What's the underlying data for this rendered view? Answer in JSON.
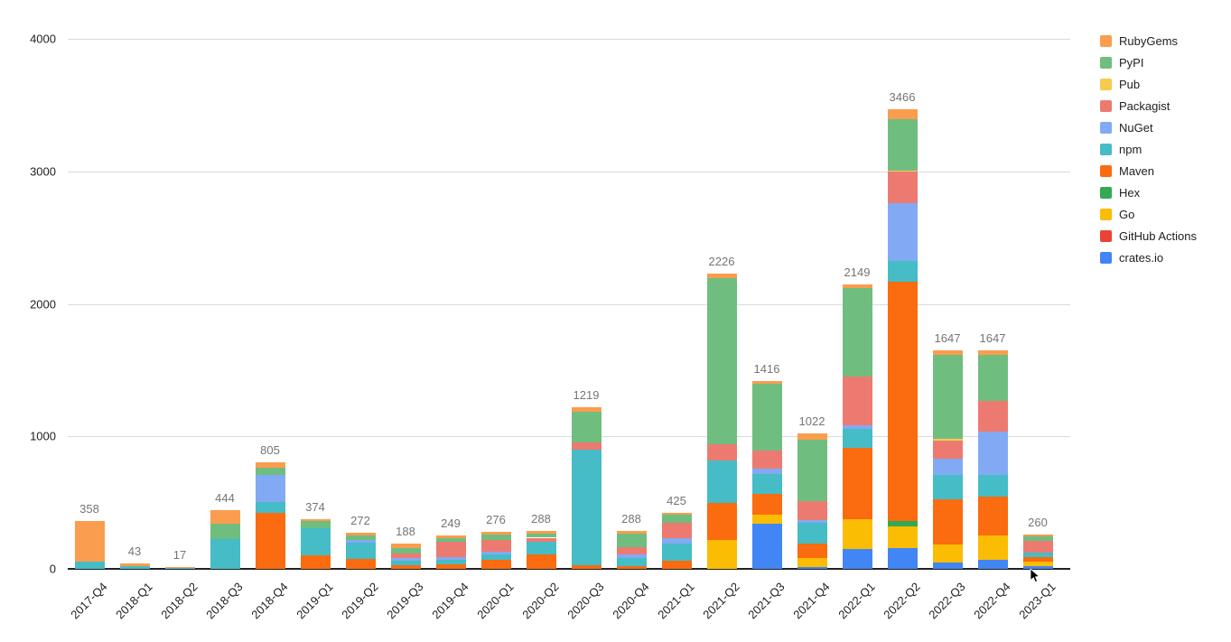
{
  "chart_data": {
    "type": "bar",
    "stacked": true,
    "title": "",
    "xlabel": "",
    "ylabel": "",
    "ylim": [
      0,
      4000
    ],
    "yticks": [
      0,
      1000,
      2000,
      3000,
      4000
    ],
    "grid": true,
    "legend_position": "right",
    "legend_order_top_to_bottom": [
      "RubyGems",
      "PyPI",
      "Pub",
      "Packagist",
      "NuGet",
      "npm",
      "Maven",
      "Hex",
      "Go",
      "GitHub Actions",
      "crates.io"
    ],
    "categories": [
      "2017-Q4",
      "2018-Q1",
      "2018-Q2",
      "2018-Q3",
      "2018-Q4",
      "2019-Q1",
      "2019-Q2",
      "2019-Q3",
      "2019-Q4",
      "2020-Q1",
      "2020-Q2",
      "2020-Q3",
      "2020-Q4",
      "2021-Q1",
      "2021-Q2",
      "2021-Q3",
      "2021-Q4",
      "2022-Q1",
      "2022-Q2",
      "2022-Q3",
      "2022-Q4",
      "2023-Q1"
    ],
    "totals": [
      358,
      43,
      17,
      444,
      805,
      374,
      272,
      188,
      249,
      276,
      288,
      1219,
      288,
      425,
      2226,
      1416,
      1022,
      2149,
      3466,
      1647,
      1647,
      260
    ],
    "series": [
      {
        "name": "crates.io",
        "color": "#4285F4",
        "values": [
          0,
          0,
          0,
          0,
          0,
          0,
          0,
          0,
          0,
          0,
          0,
          0,
          0,
          0,
          0,
          344,
          11,
          148,
          160,
          48,
          66,
          20
        ]
      },
      {
        "name": "GitHub Actions",
        "color": "#EA4335",
        "values": [
          0,
          0,
          0,
          0,
          0,
          0,
          0,
          0,
          0,
          0,
          0,
          0,
          0,
          0,
          0,
          0,
          0,
          0,
          0,
          0,
          0,
          0
        ]
      },
      {
        "name": "Go",
        "color": "#FBBC04",
        "values": [
          0,
          0,
          0,
          0,
          0,
          0,
          0,
          0,
          0,
          0,
          0,
          0,
          0,
          0,
          216,
          68,
          72,
          227,
          160,
          134,
          184,
          33
        ]
      },
      {
        "name": "Hex",
        "color": "#34A853",
        "values": [
          0,
          0,
          0,
          0,
          0,
          0,
          0,
          0,
          0,
          0,
          0,
          0,
          0,
          0,
          0,
          0,
          0,
          0,
          40,
          0,
          0,
          0
        ]
      },
      {
        "name": "Maven",
        "color": "#FB6B0F",
        "values": [
          0,
          0,
          0,
          0,
          422,
          104,
          72,
          25,
          37,
          66,
          108,
          30,
          23,
          64,
          284,
          153,
          108,
          535,
          1805,
          344,
          292,
          33
        ]
      },
      {
        "name": "npm",
        "color": "#45BCC6",
        "values": [
          55,
          20,
          10,
          224,
          79,
          204,
          127,
          35,
          33,
          46,
          96,
          872,
          58,
          130,
          318,
          148,
          157,
          148,
          160,
          180,
          164,
          40
        ]
      },
      {
        "name": "NuGet",
        "color": "#82AAF4",
        "values": [
          0,
          0,
          0,
          0,
          211,
          0,
          20,
          25,
          18,
          17,
          0,
          0,
          28,
          38,
          0,
          45,
          23,
          27,
          437,
          128,
          333,
          0
        ]
      },
      {
        "name": "Packagist",
        "color": "#ED7A70",
        "values": [
          0,
          0,
          0,
          0,
          0,
          0,
          0,
          28,
          115,
          89,
          31,
          55,
          53,
          116,
          120,
          136,
          140,
          365,
          235,
          134,
          230,
          82
        ]
      },
      {
        "name": "Pub",
        "color": "#F7CB4D",
        "values": [
          0,
          0,
          0,
          0,
          0,
          0,
          0,
          0,
          0,
          0,
          0,
          0,
          0,
          0,
          0,
          0,
          0,
          0,
          10,
          12,
          0,
          0
        ]
      },
      {
        "name": "PyPI",
        "color": "#6FBE7F",
        "values": [
          0,
          0,
          0,
          120,
          50,
          54,
          35,
          45,
          30,
          42,
          28,
          228,
          103,
          58,
          1254,
          506,
          463,
          670,
          386,
          635,
          346,
          36
        ]
      },
      {
        "name": "RubyGems",
        "color": "#FA9D4E",
        "values": [
          303,
          23,
          7,
          100,
          43,
          12,
          18,
          30,
          16,
          16,
          25,
          34,
          23,
          19,
          34,
          16,
          48,
          29,
          73,
          32,
          32,
          16
        ]
      }
    ]
  },
  "cursor": {
    "present": true
  }
}
